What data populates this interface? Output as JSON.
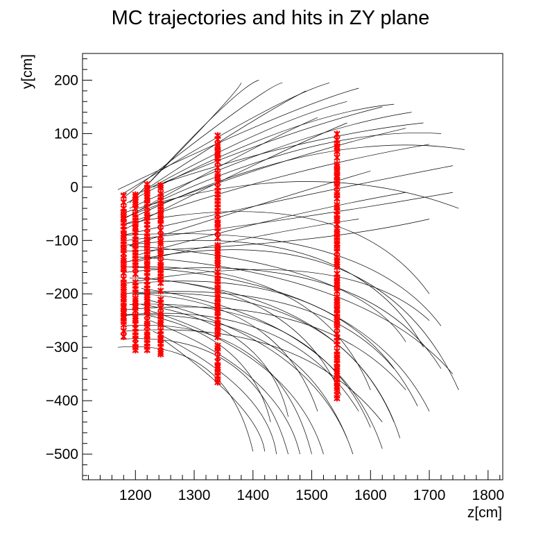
{
  "chart_data": {
    "type": "scatter",
    "title": "MC trajectories and hits in ZY plane",
    "xlabel": "z[cm]",
    "ylabel": "y[cm]",
    "xlim": [
      1110,
      1825
    ],
    "ylim": [
      -548,
      250
    ],
    "x_ticks": [
      {
        "value": 1200,
        "label": "1200"
      },
      {
        "value": 1300,
        "label": "1300"
      },
      {
        "value": 1400,
        "label": "1400"
      },
      {
        "value": 1500,
        "label": "1500"
      },
      {
        "value": 1600,
        "label": "1600"
      },
      {
        "value": 1700,
        "label": "1700"
      },
      {
        "value": 1800,
        "label": "1800"
      }
    ],
    "y_ticks": [
      {
        "value": 200,
        "label": "200"
      },
      {
        "value": 100,
        "label": "100"
      },
      {
        "value": 0,
        "label": "0"
      },
      {
        "value": -100,
        "label": "−100"
      },
      {
        "value": -200,
        "label": "−200"
      },
      {
        "value": -300,
        "label": "−300"
      },
      {
        "value": -400,
        "label": "−400"
      },
      {
        "value": -500,
        "label": "−500"
      }
    ],
    "grid": false,
    "legend": "none",
    "colors": {
      "trajectories": "#000000",
      "hits": "#ff0000"
    },
    "series": [
      {
        "kind": "trajectories",
        "arcs": [
          {
            "start": [
              1170,
              -5
            ],
            "mid": [
              1420,
              120
            ],
            "end": [
              1580,
              185
            ]
          },
          {
            "start": [
              1175,
              -15
            ],
            "mid": [
              1400,
              130
            ],
            "end": [
              1530,
              195
            ]
          },
          {
            "start": [
              1180,
              -20
            ],
            "mid": [
              1370,
              140
            ],
            "end": [
              1450,
              195
            ]
          },
          {
            "start": [
              1185,
              -30
            ],
            "mid": [
              1440,
              100
            ],
            "end": [
              1640,
              155
            ]
          },
          {
            "start": [
              1190,
              -40
            ],
            "mid": [
              1460,
              80
            ],
            "end": [
              1670,
              140
            ]
          },
          {
            "start": [
              1195,
              -50
            ],
            "mid": [
              1480,
              70
            ],
            "end": [
              1720,
              100
            ]
          },
          {
            "start": [
              1200,
              -55
            ],
            "mid": [
              1500,
              60
            ],
            "end": [
              1760,
              70
            ]
          },
          {
            "start": [
              1190,
              -30
            ],
            "mid": [
              1330,
              130
            ],
            "end": [
              1380,
              195
            ]
          },
          {
            "start": [
              1200,
              -20
            ],
            "mid": [
              1340,
              140
            ],
            "end": [
              1410,
              200
            ]
          },
          {
            "start": [
              1210,
              -10
            ],
            "mid": [
              1380,
              110
            ],
            "end": [
              1490,
              180
            ]
          },
          {
            "start": [
              1220,
              -5
            ],
            "mid": [
              1410,
              100
            ],
            "end": [
              1560,
              160
            ]
          },
          {
            "start": [
              1230,
              0
            ],
            "mid": [
              1440,
              90
            ],
            "end": [
              1620,
              150
            ]
          },
          {
            "start": [
              1240,
              5
            ],
            "mid": [
              1480,
              80
            ],
            "end": [
              1690,
              120
            ]
          },
          {
            "start": [
              1175,
              -60
            ],
            "mid": [
              1430,
              40
            ],
            "end": [
              1660,
              110
            ]
          },
          {
            "start": [
              1180,
              -70
            ],
            "mid": [
              1450,
              20
            ],
            "end": [
              1700,
              80
            ]
          },
          {
            "start": [
              1180,
              -90
            ],
            "mid": [
              1470,
              -20
            ],
            "end": [
              1740,
              40
            ]
          },
          {
            "start": [
              1185,
              -100
            ],
            "mid": [
              1460,
              -60
            ],
            "end": [
              1740,
              -10
            ]
          },
          {
            "start": [
              1180,
              -120
            ],
            "mid": [
              1470,
              -100
            ],
            "end": [
              1700,
              -60
            ]
          },
          {
            "start": [
              1180,
              -60
            ],
            "mid": [
              1380,
              60
            ],
            "end": [
              1510,
              130
            ]
          },
          {
            "start": [
              1180,
              -80
            ],
            "mid": [
              1400,
              40
            ],
            "end": [
              1560,
              120
            ]
          },
          {
            "start": [
              1190,
              -110
            ],
            "mid": [
              1420,
              -30
            ],
            "end": [
              1600,
              30
            ]
          },
          {
            "start": [
              1195,
              -130
            ],
            "mid": [
              1440,
              -60
            ],
            "end": [
              1660,
              -10
            ]
          },
          {
            "start": [
              1200,
              -140
            ],
            "mid": [
              1420,
              -90
            ],
            "end": [
              1580,
              -60
            ]
          },
          {
            "start": [
              1175,
              -50
            ],
            "mid": [
              1480,
              10
            ],
            "end": [
              1750,
              -40
            ]
          },
          {
            "start": [
              1180,
              -70
            ],
            "mid": [
              1500,
              -60
            ],
            "end": [
              1700,
              -200
            ]
          },
          {
            "start": [
              1185,
              -90
            ],
            "mid": [
              1520,
              -120
            ],
            "end": [
              1720,
              -260
            ]
          },
          {
            "start": [
              1190,
              -110
            ],
            "mid": [
              1500,
              -170
            ],
            "end": [
              1660,
              -290
            ]
          },
          {
            "start": [
              1195,
              -130
            ],
            "mid": [
              1530,
              -200
            ],
            "end": [
              1740,
              -350
            ]
          },
          {
            "start": [
              1200,
              -150
            ],
            "mid": [
              1520,
              -230
            ],
            "end": [
              1700,
              -420
            ]
          },
          {
            "start": [
              1205,
              -170
            ],
            "mid": [
              1500,
              -260
            ],
            "end": [
              1650,
              -470
            ]
          },
          {
            "start": [
              1210,
              -190
            ],
            "mid": [
              1480,
              -290
            ],
            "end": [
              1620,
              -490
            ]
          },
          {
            "start": [
              1215,
              -210
            ],
            "mid": [
              1450,
              -320
            ],
            "end": [
              1570,
              -500
            ]
          },
          {
            "start": [
              1220,
              -230
            ],
            "mid": [
              1420,
              -340
            ],
            "end": [
              1520,
              -500
            ]
          },
          {
            "start": [
              1225,
              -250
            ],
            "mid": [
              1400,
              -360
            ],
            "end": [
              1480,
              -500
            ]
          },
          {
            "start": [
              1230,
              -270
            ],
            "mid": [
              1380,
              -380
            ],
            "end": [
              1440,
              -500
            ]
          },
          {
            "start": [
              1240,
              -280
            ],
            "mid": [
              1370,
              -400
            ],
            "end": [
              1420,
              -495
            ]
          },
          {
            "start": [
              1170,
              -300
            ],
            "mid": [
              1320,
              -340
            ],
            "end": [
              1400,
              -495
            ]
          },
          {
            "start": [
              1175,
              -285
            ],
            "mid": [
              1360,
              -330
            ],
            "end": [
              1460,
              -500
            ]
          },
          {
            "start": [
              1180,
              -260
            ],
            "mid": [
              1390,
              -310
            ],
            "end": [
              1500,
              -500
            ]
          },
          {
            "start": [
              1185,
              -240
            ],
            "mid": [
              1420,
              -290
            ],
            "end": [
              1560,
              -470
            ]
          },
          {
            "start": [
              1190,
              -220
            ],
            "mid": [
              1450,
              -270
            ],
            "end": [
              1600,
              -450
            ]
          },
          {
            "start": [
              1195,
              -200
            ],
            "mid": [
              1480,
              -250
            ],
            "end": [
              1640,
              -440
            ]
          },
          {
            "start": [
              1200,
              -180
            ],
            "mid": [
              1500,
              -220
            ],
            "end": [
              1680,
              -410
            ]
          },
          {
            "start": [
              1180,
              -160
            ],
            "mid": [
              1520,
              -180
            ],
            "end": [
              1720,
              -340
            ]
          },
          {
            "start": [
              1185,
              -140
            ],
            "mid": [
              1540,
              -150
            ],
            "end": [
              1750,
              -380
            ]
          },
          {
            "start": [
              1175,
              -110
            ],
            "mid": [
              1500,
              -130
            ],
            "end": [
              1690,
              -300
            ]
          },
          {
            "start": [
              1180,
              -150
            ],
            "mid": [
              1450,
              -200
            ],
            "end": [
              1600,
              -380
            ]
          },
          {
            "start": [
              1190,
              -170
            ],
            "mid": [
              1420,
              -230
            ],
            "end": [
              1550,
              -390
            ]
          },
          {
            "start": [
              1200,
              -200
            ],
            "mid": [
              1400,
              -260
            ],
            "end": [
              1510,
              -420
            ]
          },
          {
            "start": [
              1210,
              -220
            ],
            "mid": [
              1380,
              -290
            ],
            "end": [
              1460,
              -430
            ]
          },
          {
            "start": [
              1220,
              -240
            ],
            "mid": [
              1360,
              -310
            ],
            "end": [
              1430,
              -440
            ]
          },
          {
            "start": [
              1175,
              -200
            ],
            "mid": [
              1460,
              -220
            ],
            "end": [
              1640,
              -340
            ]
          },
          {
            "start": [
              1180,
              -230
            ],
            "mid": [
              1470,
              -250
            ],
            "end": [
              1660,
              -380
            ]
          },
          {
            "start": [
              1185,
              -180
            ],
            "mid": [
              1500,
              -160
            ],
            "end": [
              1700,
              -250
            ]
          },
          {
            "start": [
              1175,
              -240
            ],
            "mid": [
              1420,
              -270
            ],
            "end": [
              1580,
              -420
            ]
          },
          {
            "start": [
              1180,
              -270
            ],
            "mid": [
              1440,
              -300
            ],
            "end": [
              1620,
              -440
            ]
          }
        ]
      },
      {
        "kind": "hits",
        "planes": [
          {
            "z": 1180,
            "y_ranges": [
              [
                -280,
                -15
              ]
            ]
          },
          {
            "z": 1200,
            "y_ranges": [
              [
                -305,
                -10
              ]
            ]
          },
          {
            "z": 1220,
            "y_ranges": [
              [
                -310,
                5
              ]
            ]
          },
          {
            "z": 1243,
            "y_ranges": [
              [
                -318,
                12
              ]
            ]
          },
          {
            "z": 1340,
            "y_ranges": [
              [
                -365,
                98
              ]
            ]
          },
          {
            "z": 1543,
            "y_ranges": [
              [
                -395,
                100
              ]
            ]
          }
        ]
      }
    ]
  }
}
